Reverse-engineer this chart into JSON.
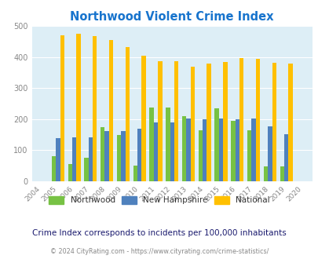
{
  "title": "Northwood Violent Crime Index",
  "years": [
    2004,
    2005,
    2006,
    2007,
    2008,
    2009,
    2010,
    2011,
    2012,
    2013,
    2014,
    2015,
    2016,
    2017,
    2018,
    2019,
    2020
  ],
  "northwood": [
    null,
    80,
    55,
    75,
    175,
    150,
    50,
    238,
    238,
    210,
    165,
    235,
    195,
    165,
    47,
    47,
    null
  ],
  "new_hampshire": [
    null,
    138,
    142,
    142,
    162,
    162,
    168,
    190,
    190,
    203,
    200,
    202,
    200,
    203,
    177,
    152,
    null
  ],
  "national": [
    null,
    469,
    474,
    467,
    455,
    432,
    405,
    387,
    387,
    368,
    378,
    383,
    397,
    394,
    381,
    379,
    null
  ],
  "northwood_color": "#77c244",
  "nh_color": "#4f81bd",
  "national_color": "#ffc000",
  "bg_color": "#ddeef6",
  "ylim": [
    0,
    500
  ],
  "yticks": [
    0,
    100,
    200,
    300,
    400,
    500
  ],
  "footnote": "Crime Index corresponds to incidents per 100,000 inhabitants",
  "copyright": "© 2024 CityRating.com - https://www.cityrating.com/crime-statistics/",
  "title_color": "#1874cd",
  "footnote_color": "#1a1a6e",
  "copyright_color": "#888888"
}
